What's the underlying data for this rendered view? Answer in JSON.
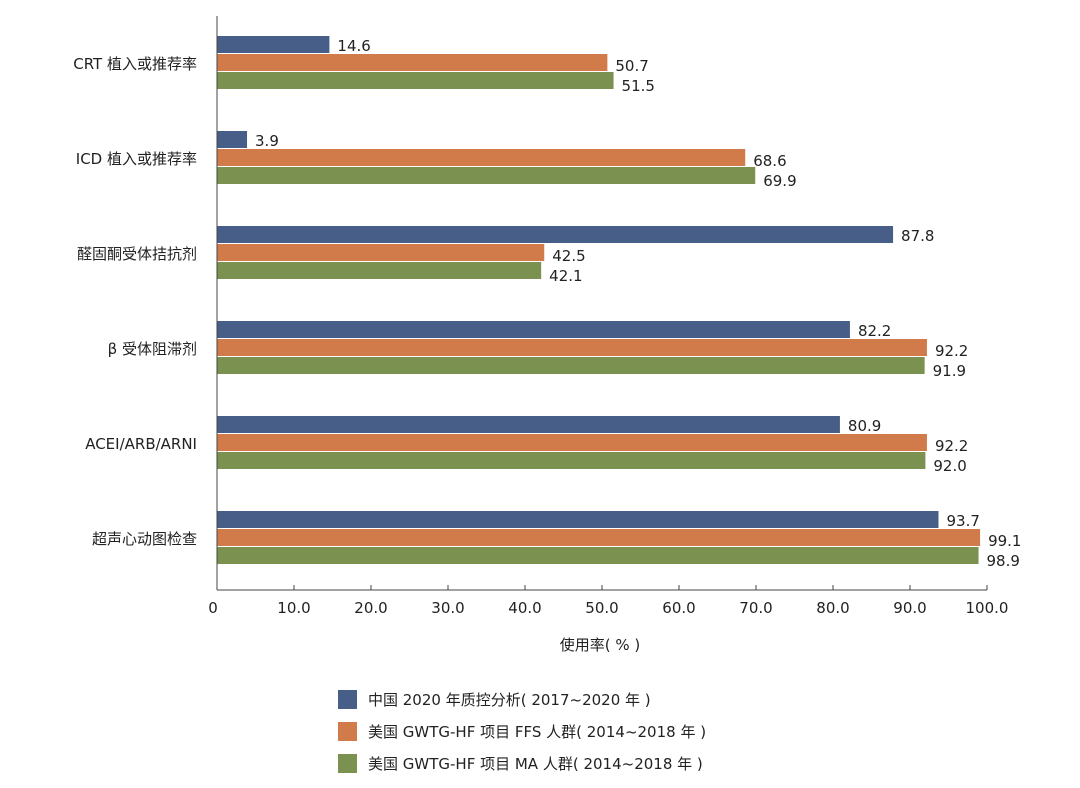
{
  "chart_data": {
    "type": "bar",
    "orientation": "horizontal",
    "categories": [
      "CRT 植入或推荐率",
      "ICD 植入或推荐率",
      "醛固酮受体拮抗剂",
      "β  受体阻滞剂",
      "ACEI/ARB/ARNI",
      "超声心动图检查"
    ],
    "series": [
      {
        "name": "中国 2020 年质控分析( 2017~2020 年 )",
        "color": "#475f88",
        "values": [
          14.6,
          3.9,
          87.8,
          82.2,
          80.9,
          93.7
        ],
        "labels": [
          "14.6",
          "3.9",
          "87.8",
          "82.2",
          "80.9",
          "93.7"
        ]
      },
      {
        "name": "美国 GWTG-HF 项目 FFS 人群( 2014~2018 年 )",
        "color": "#d27b4a",
        "values": [
          50.7,
          68.6,
          42.5,
          92.2,
          92.2,
          99.1
        ],
        "labels": [
          "50.7",
          "68.6",
          "42.5",
          "92.2",
          "92.2",
          "99.1"
        ]
      },
      {
        "name": "美国 GWTG-HF 项目 MA 人群( 2014~2018 年 )",
        "color": "#7a9150",
        "values": [
          51.5,
          69.9,
          42.1,
          91.9,
          92.0,
          98.9
        ],
        "labels": [
          "51.5",
          "69.9",
          "42.1",
          "91.9",
          "92.0",
          "98.9"
        ]
      }
    ],
    "xlabel": "使用率( % )",
    "xlim": [
      0,
      100
    ],
    "xticks": [
      0,
      10,
      20,
      30,
      40,
      50,
      60,
      70,
      80,
      90,
      100
    ],
    "xtick_labels": [
      "0",
      "10.0",
      "20.0",
      "30.0",
      "40.0",
      "50.0",
      "60.0",
      "70.0",
      "80.0",
      "90.0",
      "100.0"
    ],
    "grid": false,
    "legend_position": "bottom"
  }
}
